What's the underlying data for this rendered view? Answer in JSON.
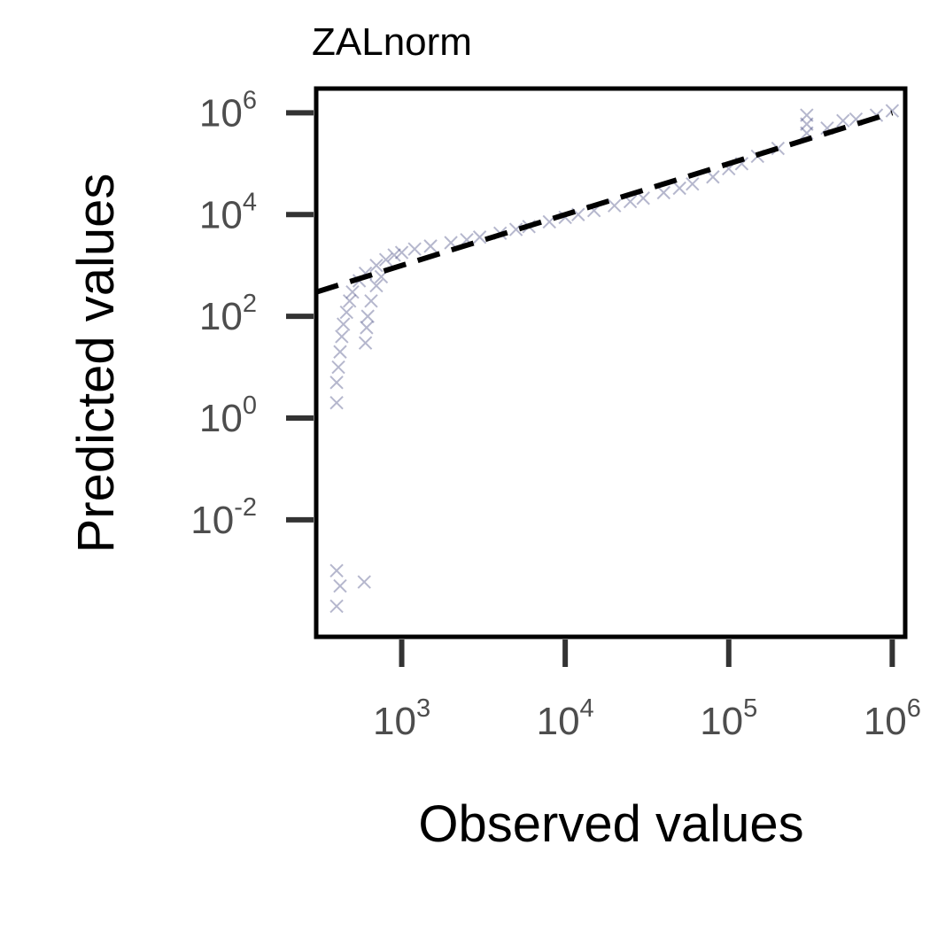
{
  "chart_data": {
    "type": "scatter",
    "title": "ZALnorm",
    "xlabel": "Observed values",
    "ylabel": "Predicted values",
    "xscale": "log",
    "yscale": "log",
    "xlim": [
      300,
      1200000
    ],
    "ylim": [
      5e-05,
      3000000
    ],
    "x_ticks": [
      {
        "value": 1000,
        "base": "10",
        "exp": "3"
      },
      {
        "value": 10000,
        "base": "10",
        "exp": "4"
      },
      {
        "value": 100000,
        "base": "10",
        "exp": "5"
      },
      {
        "value": 1000000,
        "base": "10",
        "exp": "6"
      }
    ],
    "y_ticks": [
      {
        "value": 0.01,
        "base": "10",
        "exp": "-2"
      },
      {
        "value": 1,
        "base": "10",
        "exp": "0"
      },
      {
        "value": 100,
        "base": "10",
        "exp": "2"
      },
      {
        "value": 10000,
        "base": "10",
        "exp": "4"
      },
      {
        "value": 1000000,
        "base": "10",
        "exp": "6"
      }
    ],
    "grid": false,
    "marker": "x",
    "marker_color": "#2e3372",
    "reference_line": {
      "style": "dashed",
      "color": "#000000",
      "x": [
        300,
        1000000
      ],
      "y": [
        300,
        1000000
      ]
    },
    "series": [
      {
        "points": [
          [
            400,
            0.001
          ],
          [
            420,
            0.0005
          ],
          [
            400,
            0.0002
          ],
          [
            590,
            0.0006
          ],
          [
            400,
            2
          ],
          [
            400,
            5
          ],
          [
            410,
            10
          ],
          [
            420,
            20
          ],
          [
            430,
            40
          ],
          [
            440,
            70
          ],
          [
            460,
            120
          ],
          [
            480,
            200
          ],
          [
            500,
            300
          ],
          [
            550,
            500
          ],
          [
            600,
            700
          ],
          [
            700,
            1000
          ],
          [
            800,
            1300
          ],
          [
            900,
            1600
          ],
          [
            600,
            30
          ],
          [
            610,
            60
          ],
          [
            620,
            100
          ],
          [
            650,
            200
          ],
          [
            700,
            400
          ],
          [
            750,
            600
          ],
          [
            1000,
            1800
          ],
          [
            1200,
            2100
          ],
          [
            1500,
            2400
          ],
          [
            2000,
            2800
          ],
          [
            2500,
            3200
          ],
          [
            3000,
            3600
          ],
          [
            4000,
            4300
          ],
          [
            5000,
            5100
          ],
          [
            6000,
            5800
          ],
          [
            8000,
            7200
          ],
          [
            10000,
            8800
          ],
          [
            12000,
            10000
          ],
          [
            15000,
            12000
          ],
          [
            20000,
            15000
          ],
          [
            25000,
            18000
          ],
          [
            30000,
            21000
          ],
          [
            40000,
            27000
          ],
          [
            50000,
            33000
          ],
          [
            60000,
            40000
          ],
          [
            80000,
            55000
          ],
          [
            100000,
            80000
          ],
          [
            120000,
            100000
          ],
          [
            150000,
            140000
          ],
          [
            200000,
            200000
          ],
          [
            300000,
            400000
          ],
          [
            300000,
            600000
          ],
          [
            300000,
            900000
          ],
          [
            400000,
            500000
          ],
          [
            500000,
            700000
          ],
          [
            600000,
            750000
          ],
          [
            800000,
            900000
          ],
          [
            1000000,
            1100000
          ]
        ]
      }
    ]
  }
}
